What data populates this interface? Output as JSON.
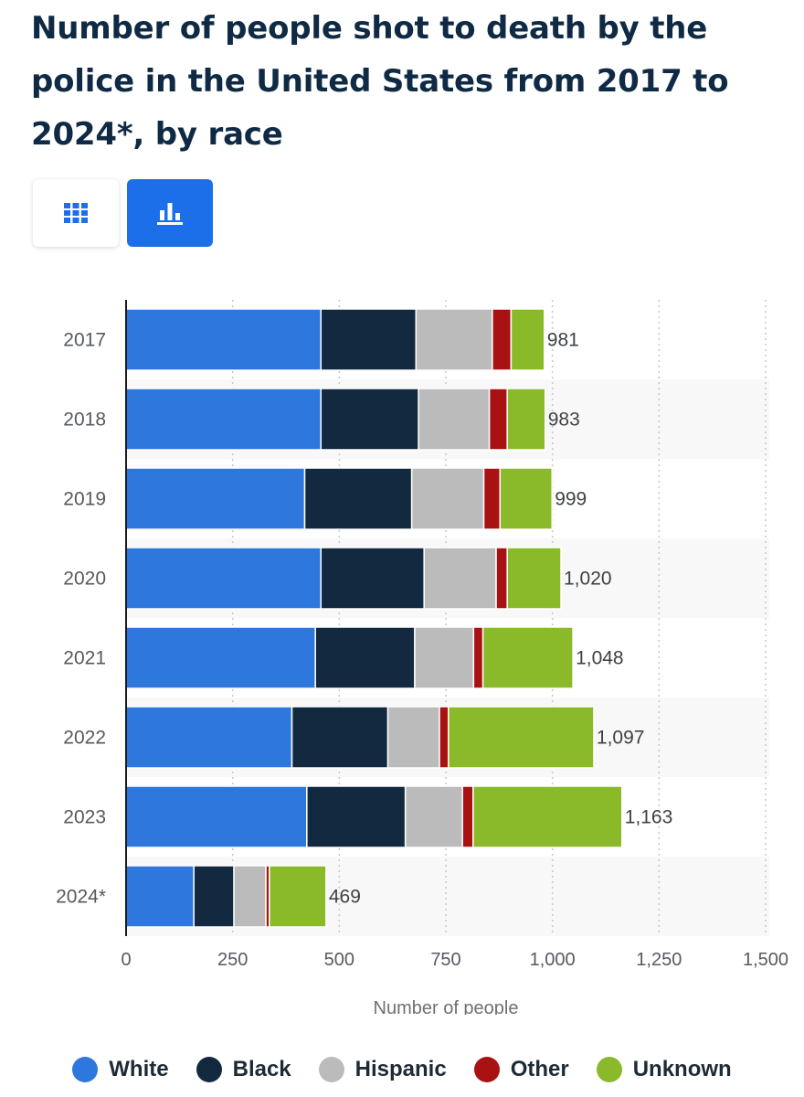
{
  "page": {
    "title": "Number of people shot to death by the police in the United States from 2017 to 2024*, by race"
  },
  "toolbar": {
    "table_icon": "grid-icon",
    "chart_icon": "bar-chart-icon",
    "active_view": "chart"
  },
  "chart_data": {
    "type": "bar",
    "orientation": "horizontal",
    "stacked": true,
    "title": "Number of people shot to death by the police in the United States from 2017 to 2024*, by race",
    "xlabel": "Number of people",
    "ylabel": "",
    "xlim": [
      0,
      1500
    ],
    "xticks": [
      0,
      250,
      500,
      750,
      1000,
      1250,
      1500
    ],
    "xtick_labels": [
      "0",
      "250",
      "500",
      "750",
      "1,000",
      "1,250",
      "1,500"
    ],
    "grid": true,
    "legend_position": "bottom",
    "categories": [
      "2017",
      "2018",
      "2019",
      "2020",
      "2021",
      "2022",
      "2023",
      "2024*"
    ],
    "series": [
      {
        "name": "White",
        "color": "#2e77dd",
        "values": [
          457,
          457,
          419,
          457,
          444,
          389,
          424,
          159
        ]
      },
      {
        "name": "Black",
        "color": "#13293f",
        "values": [
          223,
          229,
          251,
          242,
          233,
          225,
          231,
          94
        ]
      },
      {
        "name": "Hispanic",
        "color": "#bbbbbb",
        "values": [
          179,
          166,
          169,
          169,
          138,
          121,
          134,
          75
        ]
      },
      {
        "name": "Other",
        "color": "#a91212",
        "values": [
          44,
          42,
          38,
          26,
          22,
          21,
          25,
          8
        ]
      },
      {
        "name": "Unknown",
        "color": "#8aba2a",
        "values": [
          78,
          89,
          122,
          126,
          211,
          341,
          349,
          133
        ]
      }
    ],
    "totals": [
      981,
      983,
      999,
      1020,
      1048,
      1097,
      1163,
      469
    ],
    "total_labels": [
      "981",
      "983",
      "999",
      "1,020",
      "1,048",
      "1,097",
      "1,163",
      "469"
    ]
  }
}
